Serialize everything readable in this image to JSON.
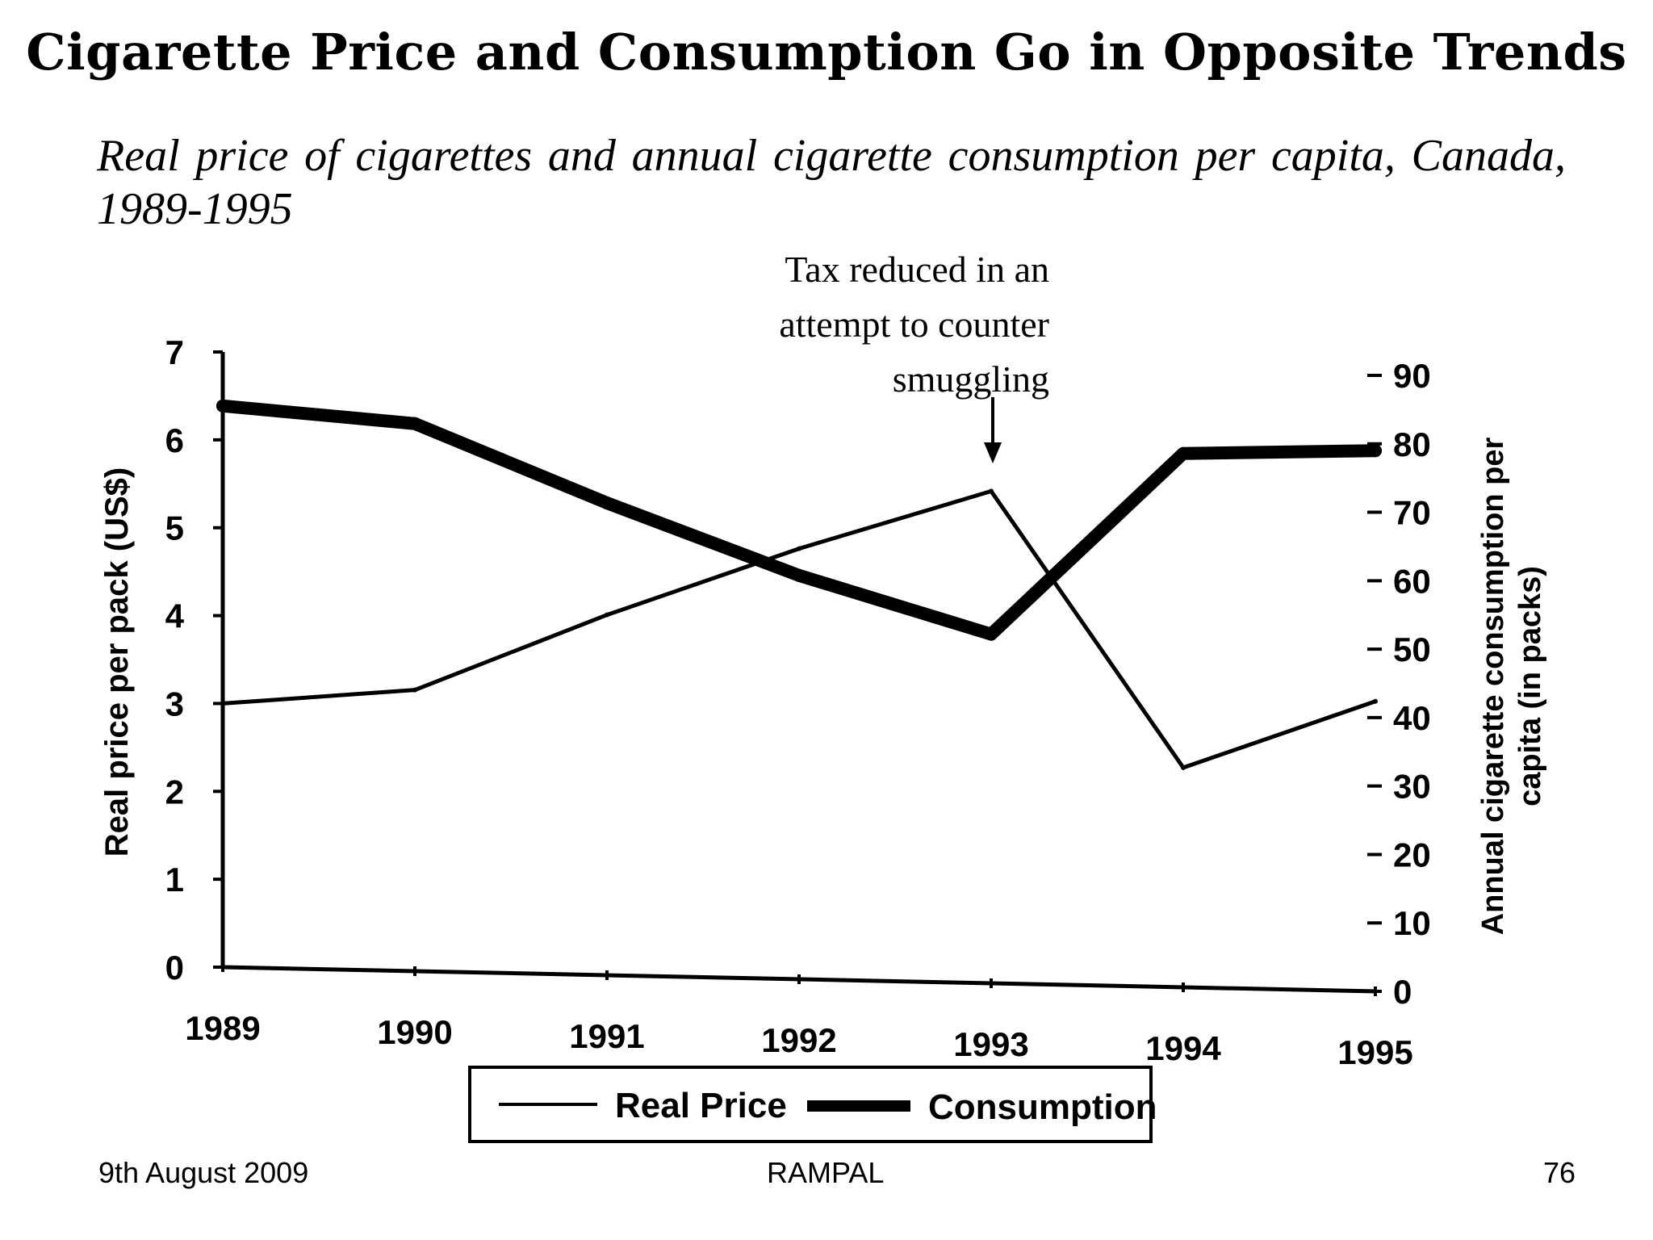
{
  "slide": {
    "title": "Cigarette Price and Consumption Go in Opposite Trends",
    "subtitle": "Real price of cigarettes and annual cigarette consumption per capita, Canada, 1989-1995",
    "annotation_lines": [
      "Tax reduced in an",
      "attempt to counter",
      "smuggling"
    ],
    "footer_date": "9th August 2009",
    "footer_author": "RAMPAL",
    "footer_page": "76"
  },
  "chart_data": {
    "type": "line",
    "x": [
      "1989",
      "1990",
      "1991",
      "1992",
      "1993",
      "1994",
      "1995"
    ],
    "ylabel": "Real price per pack (US$)",
    "ylim": [
      0,
      7
    ],
    "yticks": [
      "0",
      "1",
      "2",
      "3",
      "4",
      "5",
      "6",
      "7"
    ],
    "y2label_lines": [
      "Annual cigarette consumption per",
      "capita (in packs)"
    ],
    "y2lim": [
      0,
      90
    ],
    "y2ticks": [
      "0",
      "10",
      "20",
      "30",
      "40",
      "50",
      "60",
      "70",
      "80",
      "90"
    ],
    "series": [
      {
        "name": "Real Price",
        "axis": "left",
        "values": [
          3.0,
          3.2,
          4.1,
          4.9,
          5.6,
          2.5,
          3.3
        ]
      },
      {
        "name": "Consumption",
        "axis": "right",
        "values": [
          82,
          80,
          69,
          59,
          51,
          78,
          79
        ]
      }
    ],
    "annotation_at": "1993",
    "legend_position": "bottom",
    "grid": false
  }
}
